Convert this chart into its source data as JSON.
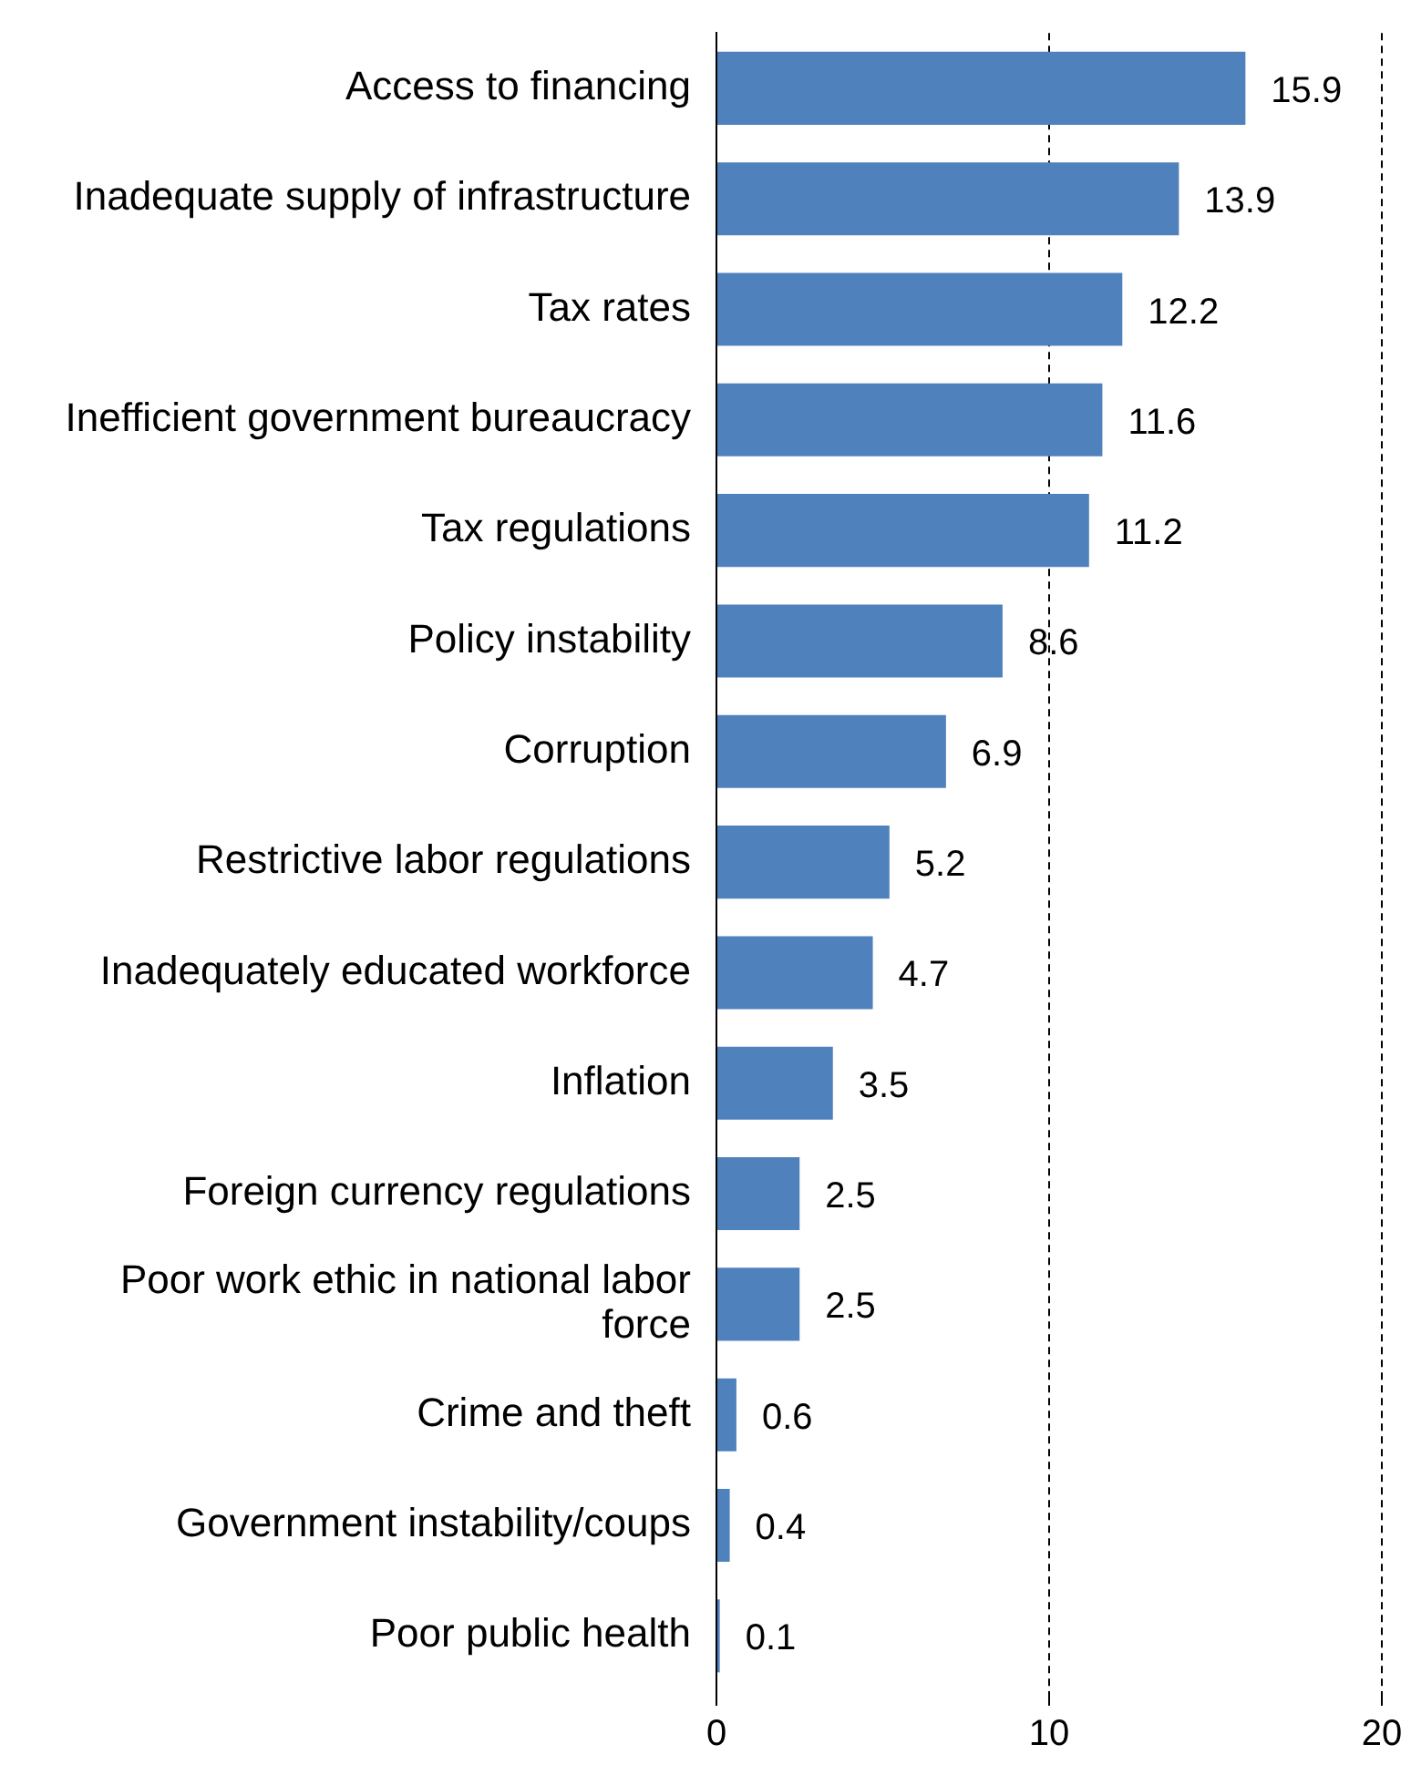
{
  "chart_data": {
    "type": "bar",
    "orientation": "horizontal",
    "categories": [
      "Access to financing",
      "Inadequate supply of infrastructure",
      "Tax rates",
      "Inefficient government bureaucracy",
      "Tax regulations",
      "Policy instability",
      "Corruption",
      "Restrictive labor regulations",
      "Inadequately educated workforce",
      "Inflation",
      "Foreign currency regulations",
      "Poor work ethic in national labor force",
      "Crime and theft",
      "Government instability/coups",
      "Poor public health"
    ],
    "values": [
      15.9,
      13.9,
      12.2,
      11.6,
      11.2,
      8.6,
      6.9,
      5.2,
      4.7,
      3.5,
      2.5,
      2.5,
      0.6,
      0.4,
      0.1
    ],
    "color": "#4f81bd",
    "xlim": [
      0,
      20
    ],
    "xticks": [
      0,
      10,
      20
    ],
    "grid": "x",
    "data_labels": true,
    "legend": false
  }
}
